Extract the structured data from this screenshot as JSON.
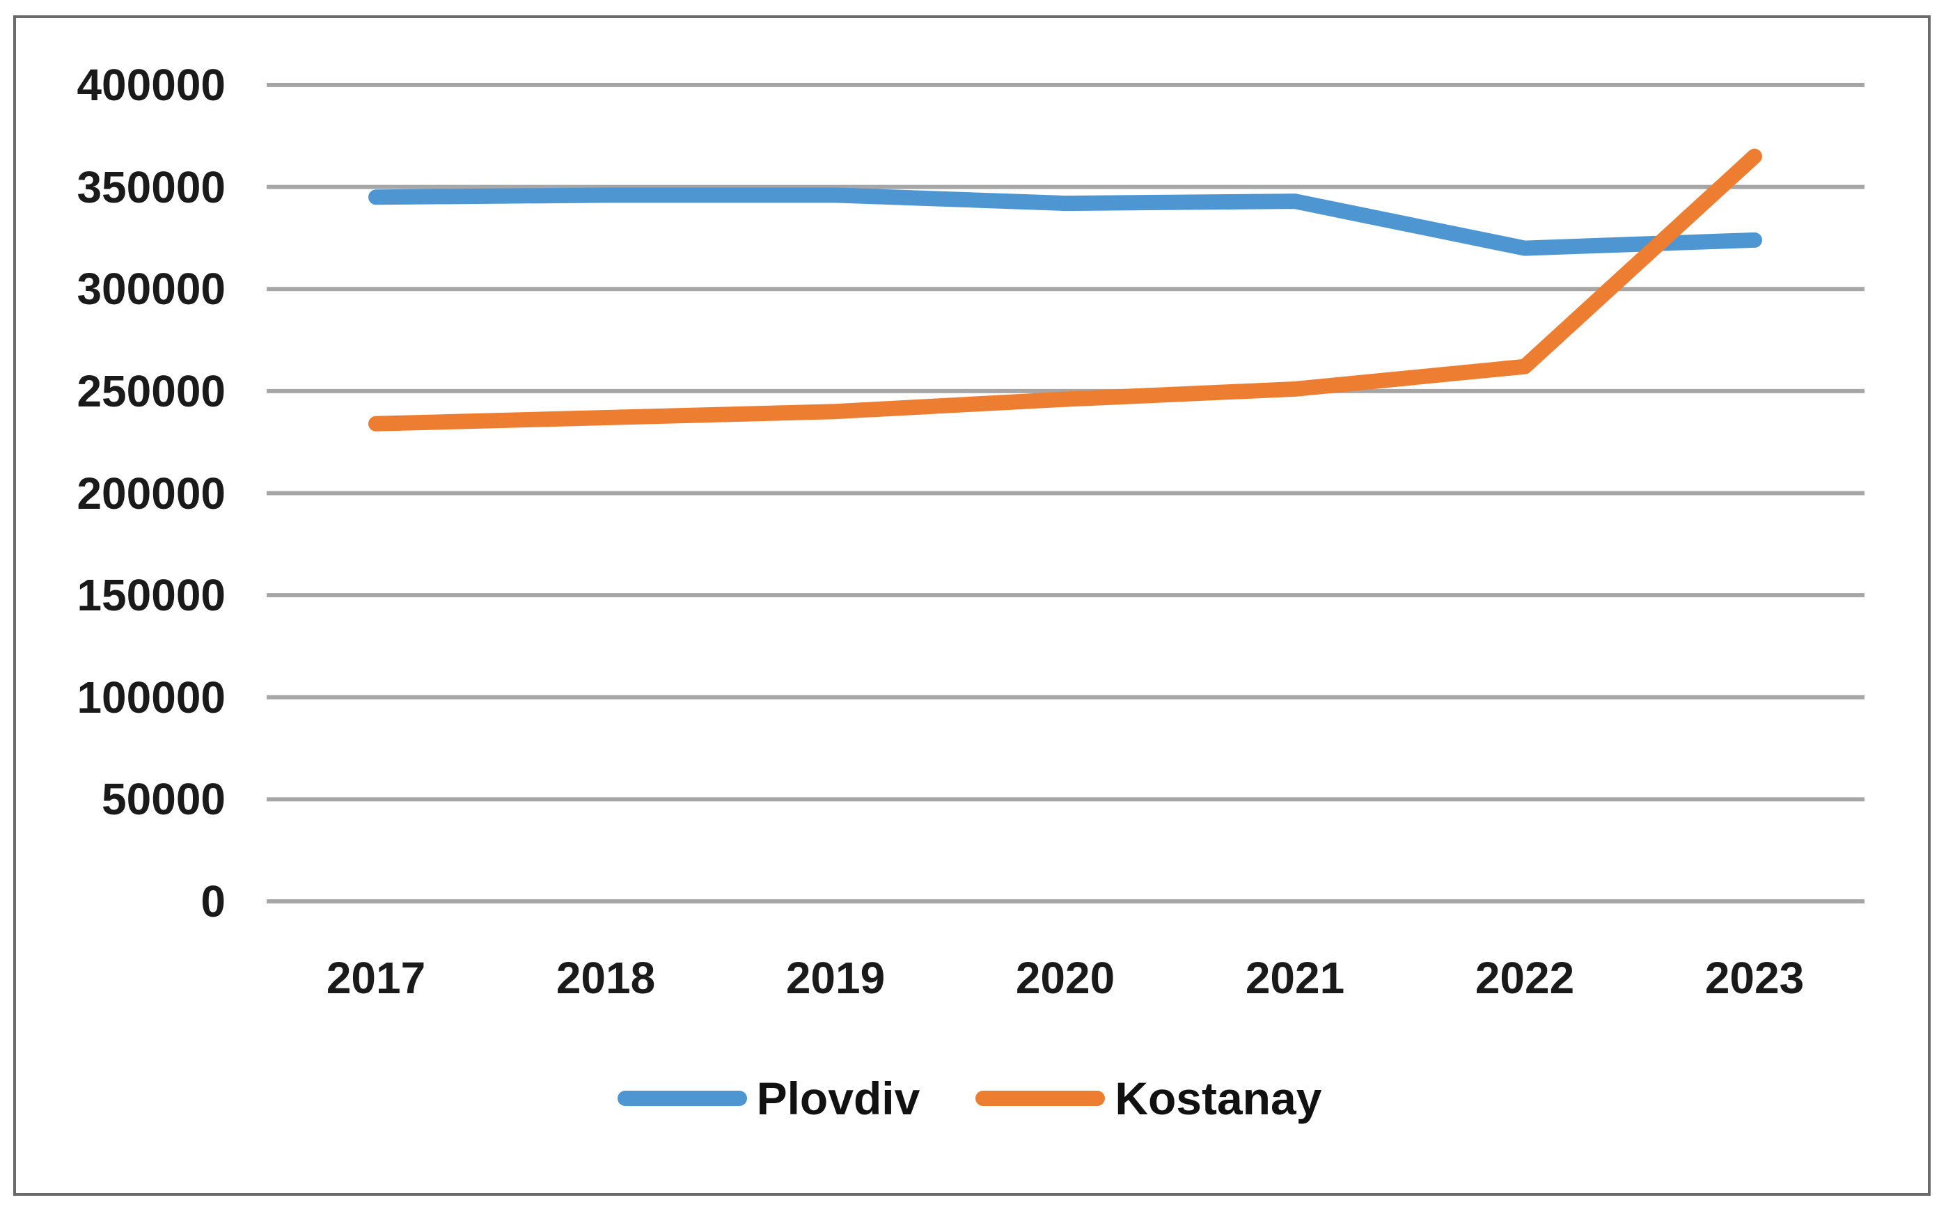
{
  "chart_data": {
    "type": "line",
    "title": "",
    "xlabel": "",
    "ylabel": "",
    "categories": [
      "2017",
      "2018",
      "2019",
      "2020",
      "2021",
      "2022",
      "2023"
    ],
    "series": [
      {
        "name": "Plovdiv",
        "color": "#4E96D2",
        "values": [
          345000,
          346000,
          346000,
          342000,
          343000,
          320000,
          324000
        ]
      },
      {
        "name": "Kostanay",
        "color": "#ED7D31",
        "values": [
          234000,
          237000,
          240000,
          246000,
          251000,
          262000,
          365000
        ]
      }
    ],
    "ylim": [
      0,
      400000
    ],
    "y_tick_step": 50000,
    "y_ticks": [
      0,
      50000,
      100000,
      150000,
      200000,
      250000,
      300000,
      350000,
      400000
    ],
    "grid": true,
    "legend_position": "bottom",
    "line_width": 22,
    "gridline_color": "#A6A6A6",
    "axis_text_color": "#1A1A1A",
    "border_color": "#6A6A6A",
    "background": "#FFFFFF"
  }
}
